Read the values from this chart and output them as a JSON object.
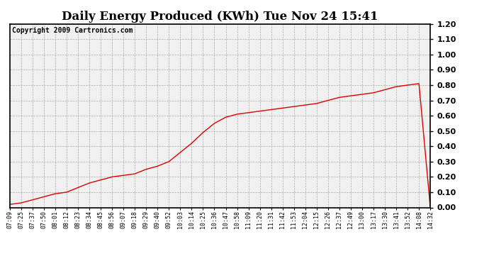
{
  "title": "Daily Energy Produced (KWh) Tue Nov 24 15:41",
  "copyright_text": "Copyright 2009 Cartronics.com",
  "line_color": "#dd0000",
  "bg_color": "#ffffff",
  "plot_bg_color": "#f0f0f0",
  "grid_color": "#aaaaaa",
  "ylim": [
    0.0,
    1.2
  ],
  "yticks": [
    0.0,
    0.1,
    0.2,
    0.3,
    0.4,
    0.5,
    0.6,
    0.7,
    0.8,
    0.9,
    1.0,
    1.1,
    1.2
  ],
  "x_labels": [
    "07:09",
    "07:25",
    "07:37",
    "07:50",
    "08:01",
    "08:12",
    "08:23",
    "08:34",
    "08:45",
    "08:56",
    "09:07",
    "09:18",
    "09:29",
    "09:40",
    "09:52",
    "10:03",
    "10:14",
    "10:25",
    "10:36",
    "10:47",
    "10:58",
    "11:09",
    "11:20",
    "11:31",
    "11:42",
    "11:53",
    "12:04",
    "12:15",
    "12:26",
    "12:37",
    "12:49",
    "13:00",
    "13:17",
    "13:30",
    "13:41",
    "13:52",
    "14:08",
    "14:32"
  ],
  "y_values": [
    0.02,
    0.03,
    0.05,
    0.07,
    0.09,
    0.1,
    0.13,
    0.16,
    0.18,
    0.2,
    0.21,
    0.22,
    0.25,
    0.27,
    0.3,
    0.36,
    0.42,
    0.49,
    0.55,
    0.59,
    0.61,
    0.62,
    0.63,
    0.64,
    0.65,
    0.66,
    0.67,
    0.68,
    0.7,
    0.72,
    0.73,
    0.74,
    0.75,
    0.77,
    0.79,
    0.8,
    0.81,
    0.0
  ],
  "title_fontsize": 12,
  "copyright_fontsize": 7,
  "ytick_fontsize": 8,
  "xtick_fontsize": 6,
  "fig_width": 6.9,
  "fig_height": 3.75,
  "dpi": 100
}
